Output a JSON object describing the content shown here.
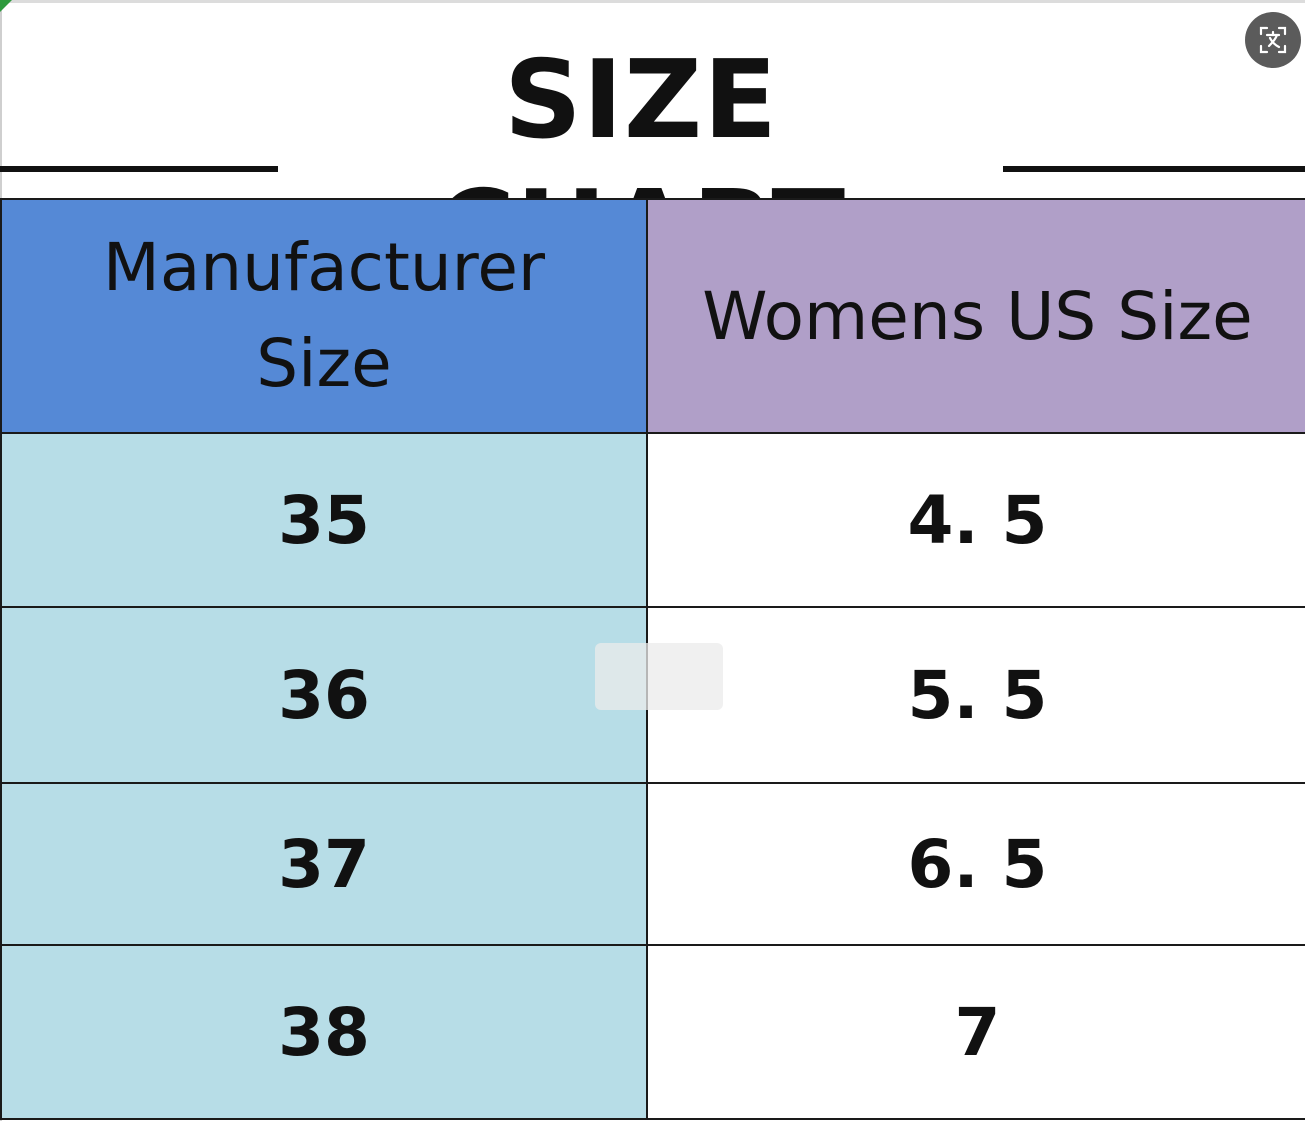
{
  "title": "SIZE CHART",
  "icons": {
    "lens_button": "image-search-icon"
  },
  "colors": {
    "header_manufacturer": "#5589d6",
    "header_us": "#b09fc8",
    "column_manufacturer": "#b7dde7",
    "column_us": "#ffffff"
  },
  "table": {
    "headers": {
      "manufacturer_line1": "Manufacturer",
      "manufacturer_line2": "Size",
      "us": "Womens US Size"
    },
    "rows": [
      {
        "manufacturer": "35",
        "us": "4. 5"
      },
      {
        "manufacturer": "36",
        "us": "5. 5"
      },
      {
        "manufacturer": "37",
        "us": "6. 5"
      },
      {
        "manufacturer": "38",
        "us": "7"
      }
    ]
  }
}
